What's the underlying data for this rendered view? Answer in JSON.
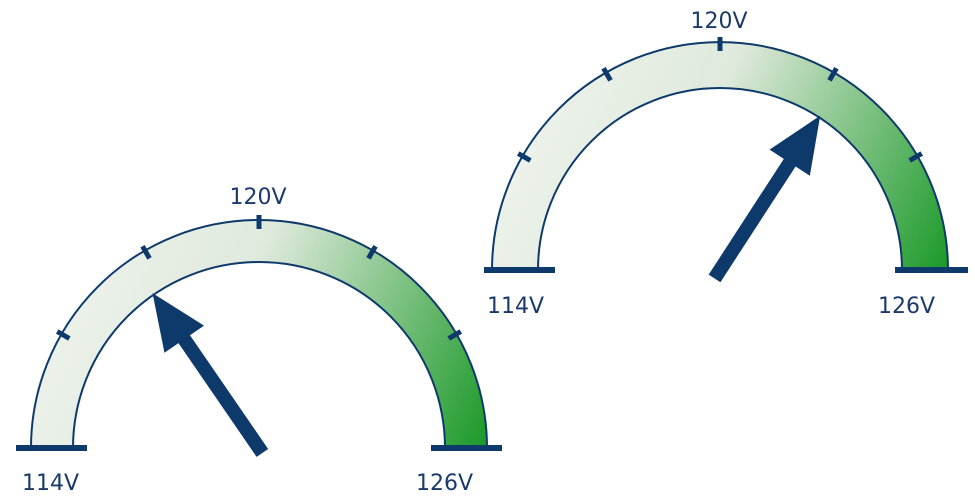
{
  "colors": {
    "outline": "#0e3a6b",
    "needle": "#0e3a6b",
    "fill_start": "#f2f6f1",
    "fill_end": "#1d9a2a",
    "label": "#1b3a6b"
  },
  "gauges": [
    {
      "name": "gauge-left",
      "min_label": "114V",
      "mid_label": "120V",
      "max_label": "126V",
      "min_value": 114,
      "max_value": 126,
      "reading": 117.7
    },
    {
      "name": "gauge-right",
      "min_label": "114V",
      "mid_label": "120V",
      "max_label": "126V",
      "min_value": 114,
      "max_value": 126,
      "reading": 122.2
    }
  ]
}
